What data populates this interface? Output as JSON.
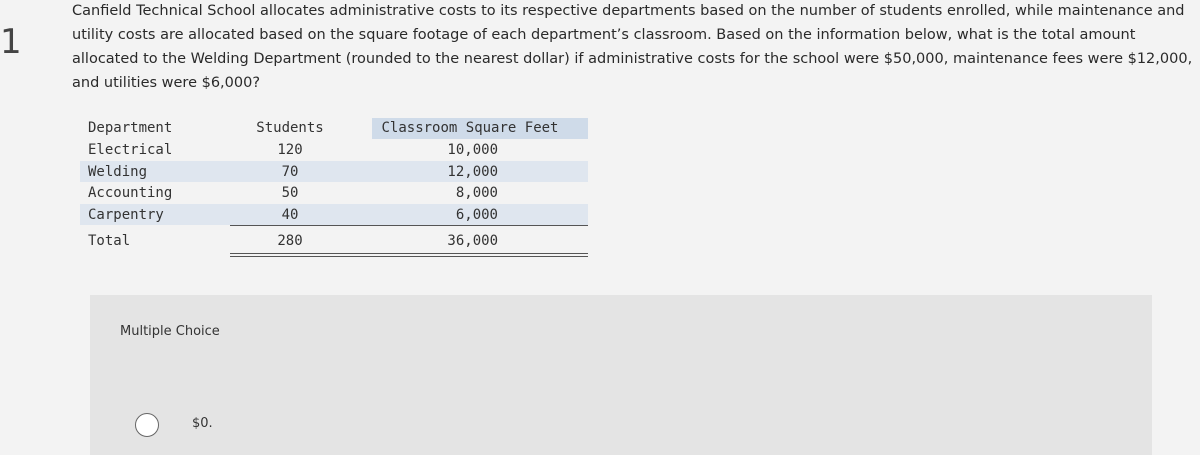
{
  "question": {
    "number": "1",
    "lines": [
      "Canfield Technical School allocates administrative costs to its respective departments based on the number of students enrolled, while maintenance and",
      "utility costs are allocated based on the square footage of each department’s classroom. Based on the information below, what is the total amount",
      "allocated to the Welding Department (rounded to the nearest dollar) if administrative costs for the school were $50,000, maintenance fees were $12,000,",
      "and utilities were $6,000?"
    ]
  },
  "table": {
    "header": [
      "Department",
      "Students",
      "Classroom Square Feet"
    ],
    "rows": [
      [
        "Electrical",
        "120",
        "10,000"
      ],
      [
        "Welding",
        "70",
        "12,000"
      ],
      [
        "Accounting",
        "50",
        "8,000"
      ],
      [
        "Carpentry",
        "40",
        "6,000"
      ]
    ],
    "total": [
      "Total",
      "280",
      "36,000"
    ]
  },
  "multiple_choice": {
    "label": "Multiple Choice",
    "options": [
      "$0."
    ]
  }
}
